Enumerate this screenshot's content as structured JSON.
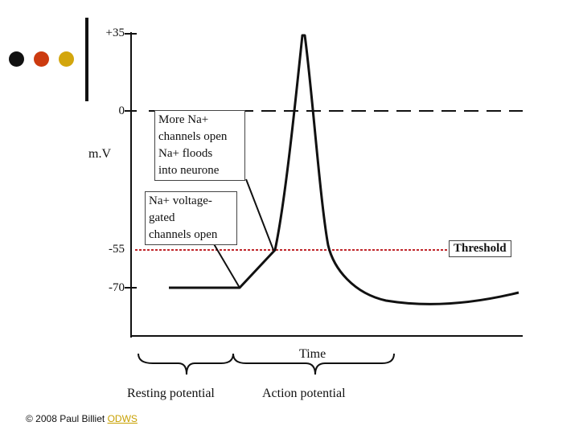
{
  "logo": {
    "dot_colors": [
      "#111111",
      "#cc3a0f",
      "#d3a60d"
    ]
  },
  "axis": {
    "y_unit": "m.V",
    "y_ticks": [
      "+35",
      "0",
      "-55",
      "-70"
    ],
    "x_label": "Time"
  },
  "threshold": {
    "label": "Threshold",
    "value_mv": -55,
    "color": "#c0262b"
  },
  "annotations": {
    "na_floods": [
      "More Na+",
      "channels open",
      "Na+ floods",
      "into neurone"
    ],
    "na_voltage_gated": [
      "Na+ voltage-",
      "gated",
      "channels open"
    ]
  },
  "phases": {
    "resting": "Resting potential",
    "action": "Action potential"
  },
  "footer": {
    "copyright": "© 2008 Paul Billiet",
    "link": "ODWS"
  }
}
